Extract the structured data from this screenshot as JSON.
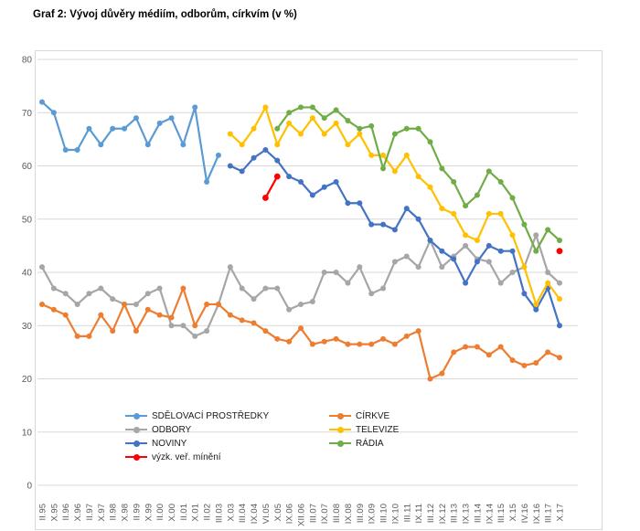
{
  "title": "Graf 2: Vývoj důvěry médiím, odborům, církvím (v %)",
  "chart_data": {
    "type": "line",
    "title": "Graf 2: Vývoj důvěry médiím, odborům, církvím (v %)",
    "xlabel": "",
    "ylabel": "",
    "ylim": [
      0,
      80
    ],
    "y_ticks": [
      0,
      10,
      20,
      30,
      40,
      50,
      60,
      70,
      80
    ],
    "grid": true,
    "legend_position": "bottom-inside",
    "x_labels": [
      "II.95",
      "X.95",
      "II.96",
      "X.96",
      "II.97",
      "X.97",
      "II.98",
      "X.98",
      "II.99",
      "X.99",
      "II.00",
      "X.00",
      "II.01",
      "X.01",
      "II.02",
      "III.03",
      "X.03",
      "III.04",
      "IX.04",
      "VI.05",
      "X.05",
      "IX.06",
      "XII.06",
      "III.07",
      "IX.07",
      "III.08",
      "IX.08",
      "III.09",
      "IX.09",
      "III.10",
      "IX.10",
      "III.11",
      "IX.11",
      "III.12",
      "IX.12",
      "III.13",
      "IX.13",
      "III.14",
      "IX.14",
      "III.15",
      "X.15",
      "IV.16",
      "IX.16",
      "III.17",
      "X.17"
    ],
    "series": [
      {
        "name": "SDĚLOVACÍ PROSTŘEDKY",
        "color": "#5B9BD5",
        "start": 0,
        "values": [
          72,
          70,
          63,
          63,
          67,
          64,
          67,
          67,
          69,
          64,
          68,
          69,
          64,
          71,
          57,
          62
        ]
      },
      {
        "name": "ODBORY",
        "color": "#A6A6A6",
        "start": 0,
        "values": [
          41,
          37,
          36,
          34,
          36,
          37,
          35,
          34,
          34,
          36,
          37,
          30,
          30,
          28,
          29,
          34,
          41,
          37,
          35,
          37,
          37,
          33,
          34,
          34.5,
          40,
          40,
          38,
          41,
          36,
          37,
          42,
          43,
          41,
          46,
          41,
          43,
          45,
          42.5,
          42,
          38,
          40,
          41,
          47,
          40,
          38
        ]
      },
      {
        "name": "CÍRKVE",
        "color": "#ED7D31",
        "start": 0,
        "values": [
          34,
          33,
          32,
          28,
          28,
          32,
          29,
          34,
          29,
          33,
          32,
          31.5,
          37,
          30,
          34,
          34,
          32,
          31,
          30.5,
          29,
          27.5,
          27,
          29.5,
          26.5,
          27,
          27.5,
          26.5,
          26.5,
          26.5,
          27.5,
          26.5,
          28,
          29,
          20,
          21,
          25,
          26,
          26,
          24.5,
          26,
          23.5,
          22.5,
          23,
          25,
          24
        ]
      },
      {
        "name": "NOVINY",
        "color": "#4472C4",
        "start": 16,
        "values": [
          60,
          59,
          61.5,
          63,
          61,
          58,
          57,
          54.5,
          56,
          57,
          53,
          53,
          49,
          49,
          48,
          52,
          50,
          46,
          44,
          42.5,
          38,
          42,
          45,
          44,
          44,
          36,
          33,
          37,
          30
        ]
      },
      {
        "name": "TELEVIZE",
        "color": "#FFC000",
        "start": 16,
        "values": [
          66,
          64,
          67,
          71,
          64,
          68,
          66,
          69,
          66,
          68,
          64,
          66,
          62,
          62,
          59,
          62,
          58,
          56,
          52,
          51,
          47,
          46,
          51,
          51,
          47,
          41,
          34,
          38,
          35
        ]
      },
      {
        "name": "RÁDIA",
        "color": "#70AD47",
        "start": 20,
        "values": [
          67,
          70,
          71,
          71,
          69,
          70.5,
          68.5,
          67,
          67.5,
          59.5,
          66,
          67,
          67,
          64.5,
          59.5,
          57,
          52.5,
          54.5,
          59,
          57,
          54,
          49,
          44,
          48,
          46
        ]
      },
      {
        "name": "výzk. veř. mínění",
        "color": "#FF0000",
        "points": [
          [
            19,
            54
          ],
          [
            20,
            58
          ],
          [
            44,
            44
          ]
        ]
      }
    ],
    "style": {
      "grid_color": "#D9D9D9",
      "border_color": "#D9D9D9",
      "axis_text_color": "#595959"
    }
  },
  "legend": {
    "columns": [
      {
        "items": [
          {
            "label": "SDĚLOVACÍ PROSTŘEDKY",
            "color": "#5B9BD5"
          },
          {
            "label": "ODBORY",
            "color": "#A6A6A6"
          },
          {
            "label": "NOVINY",
            "color": "#4472C4"
          },
          {
            "label": "výzk. veř. mínění",
            "color": "#FF0000"
          }
        ]
      },
      {
        "items": [
          {
            "label": "CÍRKVE",
            "color": "#ED7D31"
          },
          {
            "label": "TELEVIZE",
            "color": "#FFC000"
          },
          {
            "label": "RÁDIA",
            "color": "#70AD47"
          }
        ]
      }
    ]
  }
}
